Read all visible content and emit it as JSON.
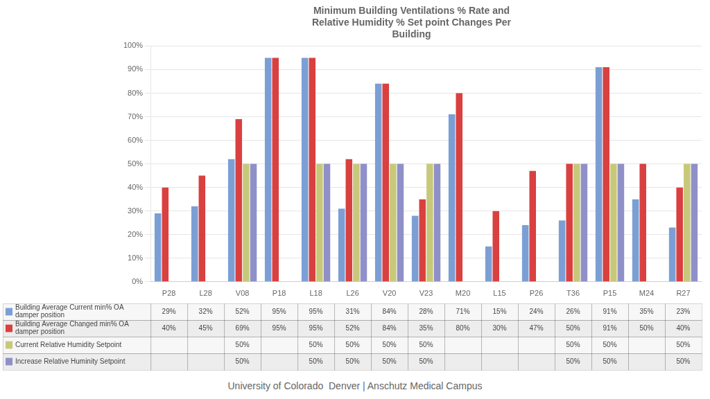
{
  "chart_data": {
    "type": "bar",
    "title": "Minimum Building Ventilations % Rate and\nRelative Humidity % Set point Changes Per\nBuilding",
    "annotations": [
      "University of Colorado  Denver | Anschutz Medical Campus"
    ],
    "categories": [
      "P28",
      "L28",
      "V08",
      "P18",
      "L18",
      "L26",
      "V20",
      "V23",
      "M20",
      "L15",
      "P26",
      "T36",
      "P15",
      "M24",
      "R27"
    ],
    "series": [
      {
        "name": "Building Average Current min% OA\ndamper position",
        "color": "#7B9FD4",
        "values": [
          29,
          32,
          52,
          95,
          95,
          31,
          84,
          28,
          71,
          15,
          24,
          26,
          91,
          35,
          23
        ],
        "value_labels": [
          "29%",
          "32%",
          "52%",
          "95%",
          "95%",
          "31%",
          "84%",
          "28%",
          "71%",
          "15%",
          "24%",
          "26%",
          "91%",
          "35%",
          "23%"
        ]
      },
      {
        "name": "Building Average Changed min% OA\ndamper position",
        "color": "#D94040",
        "values": [
          40,
          45,
          69,
          95,
          95,
          52,
          84,
          35,
          80,
          30,
          47,
          50,
          91,
          50,
          40
        ],
        "value_labels": [
          "40%",
          "45%",
          "69%",
          "95%",
          "95%",
          "52%",
          "84%",
          "35%",
          "80%",
          "30%",
          "47%",
          "50%",
          "91%",
          "50%",
          "40%"
        ]
      },
      {
        "name": "Current Relative Humidity Setpoint",
        "color": "#C8C87A",
        "values": [
          0,
          0,
          50,
          0,
          50,
          50,
          50,
          50,
          0,
          0,
          0,
          50,
          50,
          0,
          50
        ],
        "value_labels": [
          null,
          null,
          "50%",
          null,
          "50%",
          "50%",
          "50%",
          "50%",
          null,
          null,
          null,
          "50%",
          "50%",
          null,
          "50%"
        ]
      },
      {
        "name": "Increase Relative Huminity Setpoint",
        "color": "#9090C8",
        "values": [
          0,
          0,
          50,
          0,
          50,
          50,
          50,
          50,
          0,
          0,
          0,
          50,
          50,
          0,
          50
        ],
        "value_labels": [
          null,
          null,
          "50%",
          null,
          "50%",
          "50%",
          "50%",
          "50%",
          null,
          null,
          null,
          "50%",
          "50%",
          null,
          "50%"
        ]
      }
    ],
    "ylim": [
      0,
      100
    ],
    "yticks": [
      {
        "value": 0,
        "label": "0%"
      },
      {
        "value": 10,
        "label": "10%"
      },
      {
        "value": 20,
        "label": "20%"
      },
      {
        "value": 30,
        "label": "30%"
      },
      {
        "value": 40,
        "label": "40%"
      },
      {
        "value": 50,
        "label": "50%"
      },
      {
        "value": 60,
        "label": "60%"
      },
      {
        "value": 70,
        "label": "70%"
      },
      {
        "value": 80,
        "label": "80%"
      },
      {
        "value": 90,
        "label": "90%"
      },
      {
        "value": 100,
        "label": "100%"
      }
    ],
    "grid": true,
    "legend": "bottom",
    "data_labels": true
  }
}
